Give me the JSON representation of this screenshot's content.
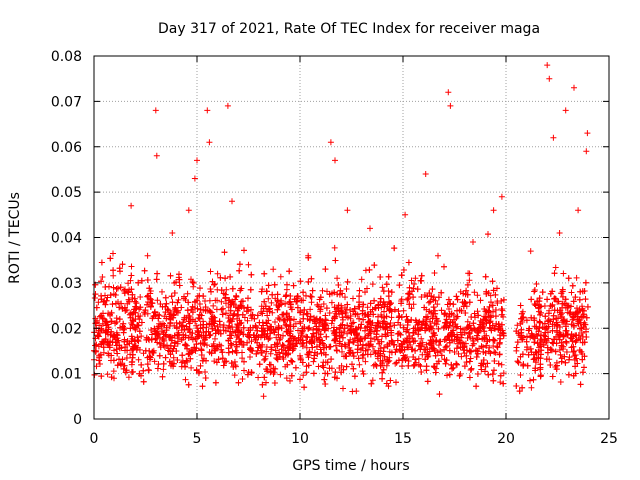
{
  "chart_data": {
    "type": "scatter",
    "title": "Day 317 of 2021, Rate Of TEC Index for receiver maga",
    "xlabel": "GPS time / hours",
    "ylabel": "ROTI / TECUs",
    "xlim": [
      0,
      25
    ],
    "ylim": [
      0,
      0.08
    ],
    "x_ticks": [
      "0",
      "5",
      "10",
      "15",
      "20",
      "25"
    ],
    "y_ticks": [
      "0",
      "0.01",
      "0.02",
      "0.03",
      "0.04",
      "0.05",
      "0.06",
      "0.07",
      "0.08"
    ],
    "grid": true,
    "marker": "+",
    "color": "#ff0000",
    "series": [
      {
        "x": [
          0.1,
          0.5,
          1.0,
          1.8,
          2.2,
          2.6,
          3.0,
          3.05,
          3.3,
          3.8,
          4.1,
          4.6,
          4.9,
          5.0,
          5.3,
          5.5,
          5.6,
          6.0,
          6.5,
          6.7,
          7.0,
          7.5,
          8.1,
          8.7,
          9.3,
          9.8,
          10.4,
          11.0,
          11.5,
          11.7,
          11.8,
          12.3,
          12.8,
          13.4,
          14.0,
          14.5,
          15.1,
          15.6,
          16.1,
          16.7,
          17.2,
          17.3,
          17.8,
          18.4,
          18.9,
          19.4,
          19.8,
          20.5,
          20.7,
          21.2,
          21.6,
          22.0,
          22.1,
          22.3,
          22.6,
          22.9,
          23.3,
          23.5,
          23.9,
          23.95
        ],
        "y": [
          0.015,
          0.026,
          0.018,
          0.047,
          0.022,
          0.036,
          0.068,
          0.058,
          0.028,
          0.041,
          0.019,
          0.046,
          0.053,
          0.057,
          0.024,
          0.068,
          0.061,
          0.032,
          0.069,
          0.048,
          0.023,
          0.034,
          0.018,
          0.033,
          0.027,
          0.021,
          0.036,
          0.022,
          0.061,
          0.057,
          0.031,
          0.046,
          0.023,
          0.042,
          0.029,
          0.017,
          0.045,
          0.031,
          0.054,
          0.036,
          0.072,
          0.069,
          0.028,
          0.039,
          0.022,
          0.046,
          0.049,
          0.015,
          0.021,
          0.037,
          0.025,
          0.078,
          0.075,
          0.062,
          0.041,
          0.068,
          0.073,
          0.046,
          0.059,
          0.063
        ]
      }
    ]
  }
}
